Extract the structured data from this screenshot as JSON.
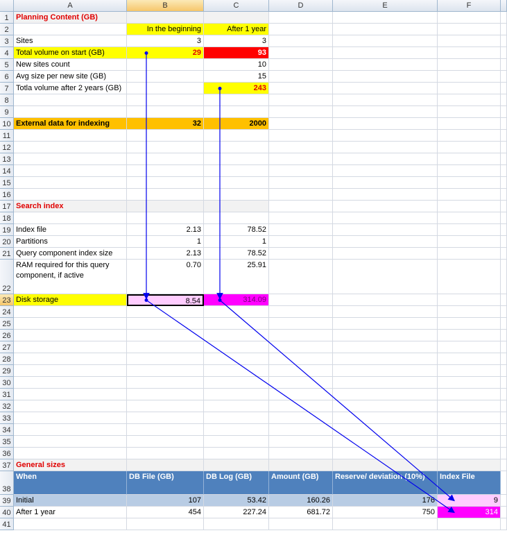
{
  "columns": [
    "A",
    "B",
    "C",
    "D",
    "E",
    "F"
  ],
  "rows": [
    {
      "n": "1",
      "A": "Planning Content (GB)"
    },
    {
      "n": "2",
      "B": "In the beginning",
      "C": "After 1 year"
    },
    {
      "n": "3",
      "A": "Sites",
      "B": "3",
      "C": "3"
    },
    {
      "n": "4",
      "A": "Total volume on start (GB)",
      "B": "29",
      "C": "93"
    },
    {
      "n": "5",
      "A": "New sites count",
      "C": "10"
    },
    {
      "n": "6",
      "A": "Avg size per new site (GB)",
      "C": "15"
    },
    {
      "n": "7",
      "A": "Totla volume after 2 years (GB)",
      "C": "243"
    },
    {
      "n": "8"
    },
    {
      "n": "9"
    },
    {
      "n": "10",
      "A": "External data for indexing",
      "B": "32",
      "C": "2000"
    },
    {
      "n": "11"
    },
    {
      "n": "12"
    },
    {
      "n": "13"
    },
    {
      "n": "14"
    },
    {
      "n": "15"
    },
    {
      "n": "16"
    },
    {
      "n": "17",
      "A": "Search index"
    },
    {
      "n": "18"
    },
    {
      "n": "19",
      "A": "Index file",
      "B": "2.13",
      "C": "78.52"
    },
    {
      "n": "20",
      "A": "Partitions",
      "B": "1",
      "C": "1"
    },
    {
      "n": "21",
      "A": "Query component index size",
      "B": "2.13",
      "C": "78.52"
    },
    {
      "n": "22",
      "A": "RAM required for this query component, if active",
      "B": "0.70",
      "C": "25.91"
    },
    {
      "n": "23",
      "A": "Disk storage",
      "B": "8.54",
      "C": "314.09"
    },
    {
      "n": "24"
    },
    {
      "n": "25"
    },
    {
      "n": "26"
    },
    {
      "n": "27"
    },
    {
      "n": "28"
    },
    {
      "n": "29"
    },
    {
      "n": "30"
    },
    {
      "n": "31"
    },
    {
      "n": "32"
    },
    {
      "n": "33"
    },
    {
      "n": "34"
    },
    {
      "n": "35"
    },
    {
      "n": "36"
    },
    {
      "n": "37",
      "A": "General sizes"
    },
    {
      "n": "38",
      "A": "When",
      "B": "DB File (GB)",
      "C": "DB Log (GB)",
      "D": "Amount (GB)",
      "E": "Reserve/ deviation (10%)",
      "F": "Index File"
    },
    {
      "n": "39",
      "A": "Initial",
      "B": "107",
      "C": "53.42",
      "D": "160.26",
      "E": "176",
      "F": "9"
    },
    {
      "n": "40",
      "A": "After 1 year",
      "B": "454",
      "C": "227.24",
      "D": "681.72",
      "E": "750",
      "F": "314"
    },
    {
      "n": "41"
    }
  ]
}
